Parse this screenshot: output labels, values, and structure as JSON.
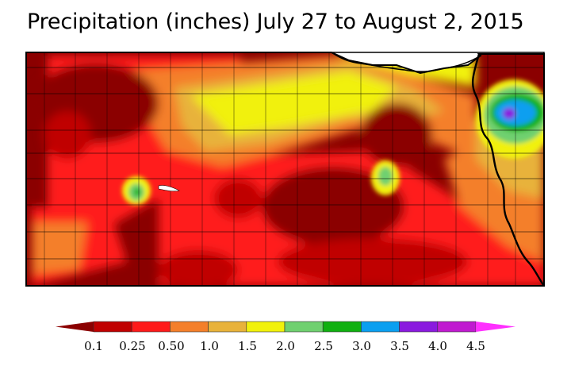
{
  "title": "Precipitation (inches) July 27 to August 2, 2015",
  "legend": {
    "labels": [
      "0.1",
      "0.25",
      "0.50",
      "1.0",
      "1.5",
      "2.0",
      "2.5",
      "3.0",
      "3.5",
      "4.0",
      "4.5"
    ],
    "colors": [
      "#8b0000",
      "#c00000",
      "#ff1a1a",
      "#f47f2a",
      "#e8b23a",
      "#f1f10a",
      "#6fd06f",
      "#10b010",
      "#0a9ff0",
      "#8a1adf",
      "#c01ad0",
      "#ff30ff"
    ]
  },
  "map_colors": {
    "background": "#8b0000",
    "county_lines": "#000000",
    "missouri_river": "#000000"
  }
}
